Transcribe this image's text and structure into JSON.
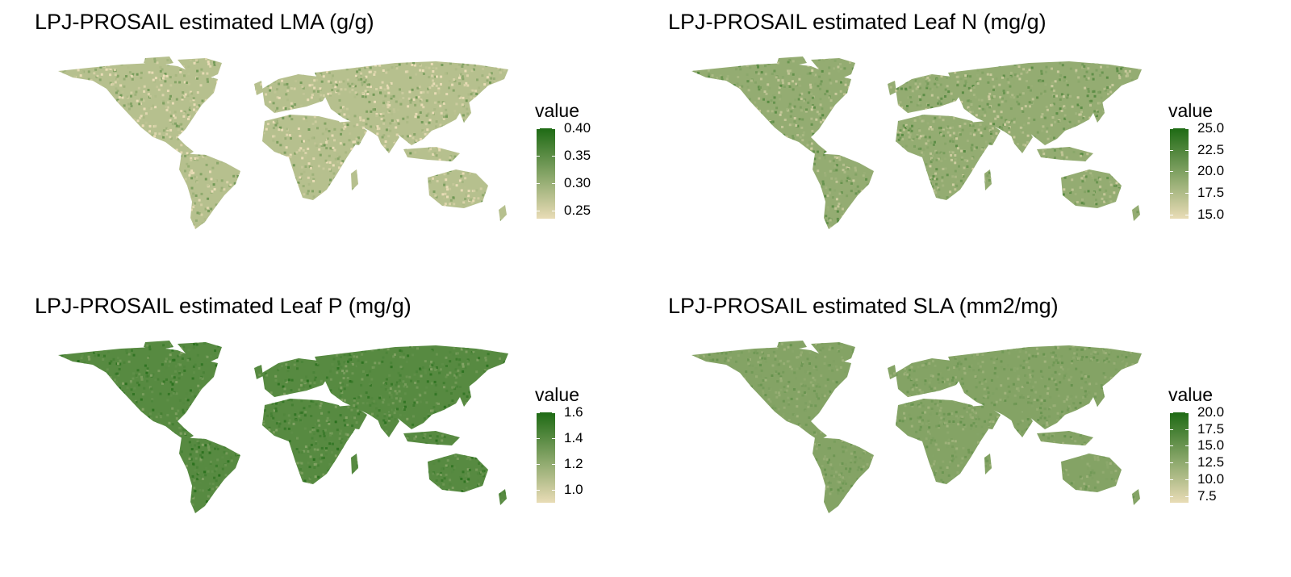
{
  "figure": {
    "panels": [
      {
        "id": "lma",
        "title": "LPJ-PROSAIL estimated LMA (g/g)",
        "legend": {
          "title": "value",
          "min": 0.235,
          "max": 0.4,
          "ticks": [
            "0.40",
            "0.35",
            "0.30",
            "0.25"
          ],
          "tick_values": [
            0.4,
            0.35,
            0.3,
            0.25
          ],
          "color_low": "#e9dcb6",
          "color_high": "#1e6a14"
        },
        "map_level": 0.25,
        "map_variation": 0.35
      },
      {
        "id": "leaf-n",
        "title": "LPJ-PROSAIL estimated Leaf N (mg/g)",
        "legend": {
          "title": "value",
          "min": 14.5,
          "max": 25.0,
          "ticks": [
            "25.0",
            "22.5",
            "20.0",
            "17.5",
            "15.0"
          ],
          "tick_values": [
            25.0,
            22.5,
            20.0,
            17.5,
            15.0
          ],
          "color_low": "#e9dcb6",
          "color_high": "#1e6a14"
        },
        "map_level": 0.42,
        "map_variation": 0.3
      },
      {
        "id": "leaf-p",
        "title": "LPJ-PROSAIL estimated Leaf P (mg/g)",
        "legend": {
          "title": "value",
          "min": 0.9,
          "max": 1.6,
          "ticks": [
            "1.6",
            "1.4",
            "1.2",
            "1.0"
          ],
          "tick_values": [
            1.6,
            1.4,
            1.2,
            1.0
          ],
          "color_low": "#e9dcb6",
          "color_high": "#1e6a14"
        },
        "map_level": 0.72,
        "map_variation": 0.22
      },
      {
        "id": "sla",
        "title": "LPJ-PROSAIL estimated SLA (mm2/mg)",
        "legend": {
          "title": "value",
          "min": 6.5,
          "max": 20.0,
          "ticks": [
            "20.0",
            "17.5",
            "15.0",
            "12.5",
            "10.0",
            "7.5"
          ],
          "tick_values": [
            20.0,
            17.5,
            15.0,
            12.5,
            10.0,
            7.5
          ],
          "color_low": "#e9dcb6",
          "color_high": "#1e6a14"
        },
        "map_level": 0.5,
        "map_variation": 0.15
      }
    ]
  }
}
